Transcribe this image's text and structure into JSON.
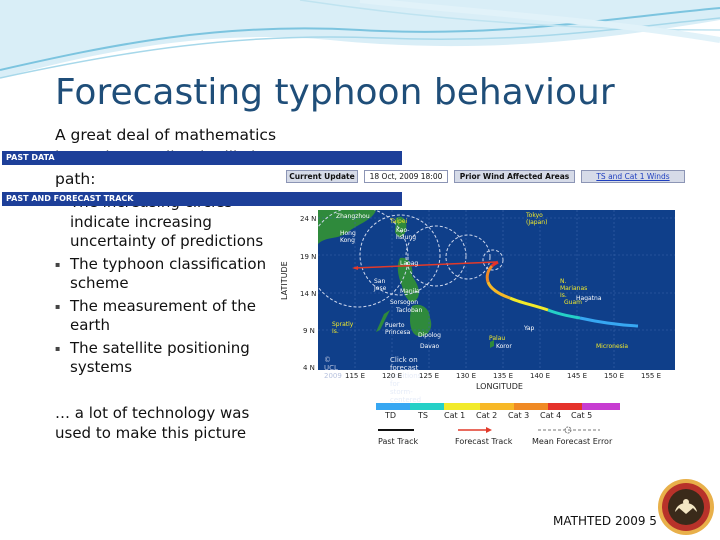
{
  "slide": {
    "title": "Forecasting typhoon behaviour",
    "intro": "A great deal of mathematics is used to predict the likely path:",
    "bullets": [
      "The increasing circles indicate increasing uncertainty of predictions",
      "The typhoon classification scheme",
      "The measurement of the earth",
      "The satellite positioning systems"
    ],
    "outro": "… a lot of technology was used to make this picture",
    "footer": "MATHTED 2009 5"
  },
  "figure": {
    "past_data_label": "PAST DATA",
    "buttons": {
      "current_update": "Current Update",
      "date": "18 Oct, 2009 18:00",
      "prior_wind": "Prior Wind Affected Areas",
      "ts_cat1": "TS and Cat 1 Winds"
    },
    "track_label": "PAST AND FORECAST TRACK",
    "latitudes": [
      "24 N",
      "19 N",
      "14 N",
      "9 N",
      "4 N"
    ],
    "longitudes": [
      "115 E",
      "120 E",
      "125 E",
      "130 E",
      "135 E",
      "140 E",
      "145 E",
      "150 E",
      "155 E"
    ],
    "ylabel": "LATITUDE",
    "xlabel": "LONGITUDE",
    "places": {
      "zhangzhou": "Zhangzhou",
      "taipei": "Taipei",
      "hong_kong": "Hong Kong",
      "kaohsiung": "Kao-hsiung",
      "tokyo": "Tokyo (Japan)",
      "laoag": "Laoag",
      "san_jose": "San Jose",
      "manila": "Manila",
      "sorsogon": "Sorsogon",
      "tacloban": "Tacloban",
      "spratly": "Spratly Is.",
      "puerto_princesa": "Puerto Princesa",
      "dipolog": "Dipolog",
      "davao": "Davao",
      "palau": "Palau",
      "koror": "Koror",
      "yap": "Yap",
      "n_marianas": "N. Marianas Is.",
      "guam": "Guam",
      "hagatna": "Hagatna",
      "micronesia": "Micronesia"
    },
    "copyright": "© UCL 2009",
    "click_note": "Click on forecast positions for storm-centered zooms",
    "legend": {
      "categories": [
        "TD",
        "TS",
        "Cat 1",
        "Cat 2",
        "Cat 3",
        "Cat 4",
        "Cat 5"
      ],
      "colors": [
        "#37a7f2",
        "#25d0c7",
        "#f2ea2a",
        "#f7b827",
        "#f08a24",
        "#e5322a",
        "#c73cd1"
      ],
      "past_track": "Past Track",
      "forecast_track": "Forecast Track",
      "mean_error": "Mean Forecast Error"
    }
  }
}
